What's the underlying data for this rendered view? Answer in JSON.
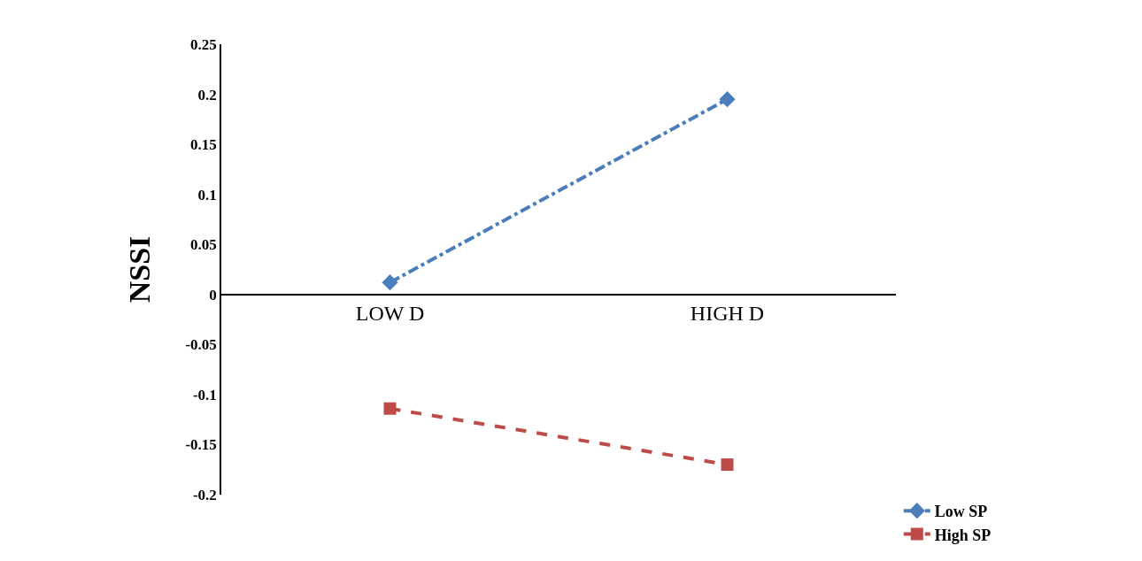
{
  "chart_data": {
    "type": "line",
    "ylabel": "NSSI",
    "categories": [
      "LOW D",
      "HIGH D"
    ],
    "series": [
      {
        "name": "Low SP",
        "color": "#4a7ebb",
        "values": [
          0.012,
          0.195
        ],
        "marker": "diamond",
        "line_style": "dashdot"
      },
      {
        "name": "High SP",
        "color": "#be4b48",
        "values": [
          -0.114,
          -0.17
        ],
        "marker": "square",
        "line_style": "dashed"
      }
    ],
    "ylim": [
      -0.2,
      0.25
    ],
    "yticks": [
      -0.2,
      -0.15,
      -0.1,
      -0.05,
      0,
      0.05,
      0.1,
      0.15,
      0.2,
      0.25
    ],
    "legend": "bottom right"
  }
}
